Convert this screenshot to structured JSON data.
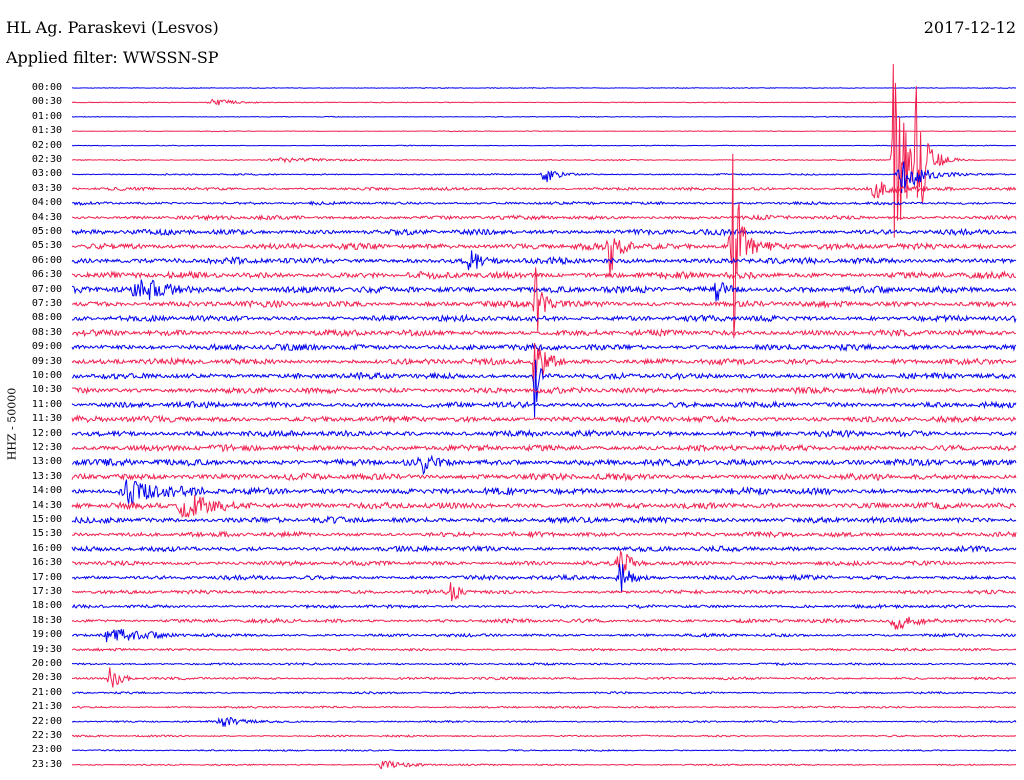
{
  "header": {
    "station": "HL Ag. Paraskevi (Lesvos)",
    "filter": "Applied filter: WWSSN-SP",
    "date": "2017-12-12",
    "channel": "HHZ - 50000"
  },
  "colors": {
    "blue": "#0000ee",
    "red": "#f0204f"
  },
  "chart_data": {
    "type": "line",
    "title": "HL Ag. Paraskevi (Lesvos)",
    "subtitle": "Applied filter: WWSSN-SP",
    "ylabel": "HHZ - 50000",
    "rows": [
      {
        "label": "00:00",
        "color": "blue",
        "noise": 0.3
      },
      {
        "label": "00:30",
        "color": "red",
        "noise": 0.3
      },
      {
        "label": "01:00",
        "color": "blue",
        "noise": 0.3
      },
      {
        "label": "01:30",
        "color": "red",
        "noise": 0.3
      },
      {
        "label": "02:00",
        "color": "blue",
        "noise": 0.3
      },
      {
        "label": "02:30",
        "color": "red",
        "noise": 0.45
      },
      {
        "label": "03:00",
        "color": "blue",
        "noise": 0.6
      },
      {
        "label": "03:30",
        "color": "red",
        "noise": 1.2
      },
      {
        "label": "04:00",
        "color": "blue",
        "noise": 1.2
      },
      {
        "label": "04:30",
        "color": "red",
        "noise": 1.6
      },
      {
        "label": "05:00",
        "color": "blue",
        "noise": 2.2
      },
      {
        "label": "05:30",
        "color": "red",
        "noise": 2.4
      },
      {
        "label": "06:00",
        "color": "blue",
        "noise": 2.5
      },
      {
        "label": "06:30",
        "color": "red",
        "noise": 2.6
      },
      {
        "label": "07:00",
        "color": "blue",
        "noise": 2.6
      },
      {
        "label": "07:30",
        "color": "red",
        "noise": 2.4
      },
      {
        "label": "08:00",
        "color": "blue",
        "noise": 2.4
      },
      {
        "label": "08:30",
        "color": "red",
        "noise": 2.4
      },
      {
        "label": "09:00",
        "color": "blue",
        "noise": 2.4
      },
      {
        "label": "09:30",
        "color": "red",
        "noise": 2.4
      },
      {
        "label": "10:00",
        "color": "blue",
        "noise": 2.3
      },
      {
        "label": "10:30",
        "color": "red",
        "noise": 2.3
      },
      {
        "label": "11:00",
        "color": "blue",
        "noise": 2.3
      },
      {
        "label": "11:30",
        "color": "red",
        "noise": 2.4
      },
      {
        "label": "12:00",
        "color": "blue",
        "noise": 2.4
      },
      {
        "label": "12:30",
        "color": "red",
        "noise": 2.4
      },
      {
        "label": "13:00",
        "color": "blue",
        "noise": 2.6
      },
      {
        "label": "13:30",
        "color": "red",
        "noise": 2.6
      },
      {
        "label": "14:00",
        "color": "blue",
        "noise": 2.6
      },
      {
        "label": "14:30",
        "color": "red",
        "noise": 2.4
      },
      {
        "label": "15:00",
        "color": "blue",
        "noise": 2.4
      },
      {
        "label": "15:30",
        "color": "red",
        "noise": 2.0
      },
      {
        "label": "16:00",
        "color": "blue",
        "noise": 2.0
      },
      {
        "label": "16:30",
        "color": "red",
        "noise": 1.8
      },
      {
        "label": "17:00",
        "color": "blue",
        "noise": 1.8
      },
      {
        "label": "17:30",
        "color": "red",
        "noise": 1.5
      },
      {
        "label": "18:00",
        "color": "blue",
        "noise": 1.3
      },
      {
        "label": "18:30",
        "color": "red",
        "noise": 1.5
      },
      {
        "label": "19:00",
        "color": "blue",
        "noise": 1.2
      },
      {
        "label": "19:30",
        "color": "red",
        "noise": 1.0
      },
      {
        "label": "20:00",
        "color": "blue",
        "noise": 0.9
      },
      {
        "label": "20:30",
        "color": "red",
        "noise": 1.0
      },
      {
        "label": "21:00",
        "color": "blue",
        "noise": 0.8
      },
      {
        "label": "21:30",
        "color": "red",
        "noise": 0.8
      },
      {
        "label": "22:00",
        "color": "blue",
        "noise": 0.7
      },
      {
        "label": "22:30",
        "color": "red",
        "noise": 0.7
      },
      {
        "label": "23:00",
        "color": "blue",
        "noise": 0.6
      },
      {
        "label": "23:30",
        "color": "red",
        "noise": 0.6
      }
    ],
    "events": [
      {
        "row": 1,
        "t": 0.15,
        "amp": 4,
        "width": 0.02
      },
      {
        "row": 5,
        "t": 0.22,
        "amp": 2,
        "width": 0.05
      },
      {
        "row": 6,
        "t": 0.5,
        "amp": 12,
        "width": 0.01
      },
      {
        "row": 7,
        "t": 0.85,
        "amp": 10,
        "width": 0.02
      },
      {
        "row": 5,
        "t": 0.87,
        "amp": 90,
        "width": 0.006
      },
      {
        "row": 5,
        "t": 0.875,
        "amp": 60,
        "width": 0.015
      },
      {
        "row": 5,
        "t": 0.895,
        "amp": 70,
        "width": 0.008
      },
      {
        "row": 6,
        "t": 0.88,
        "amp": 20,
        "width": 0.02
      },
      {
        "row": 11,
        "t": 0.57,
        "amp": 26,
        "width": 0.01
      },
      {
        "row": 11,
        "t": 0.7,
        "amp": 165,
        "width": 0.004
      },
      {
        "row": 11,
        "t": 0.7,
        "amp": 20,
        "width": 0.02
      },
      {
        "row": 12,
        "t": 0.42,
        "amp": 30,
        "width": 0.005
      },
      {
        "row": 14,
        "t": 0.07,
        "amp": 12,
        "width": 0.03
      },
      {
        "row": 14,
        "t": 0.68,
        "amp": 14,
        "width": 0.01
      },
      {
        "row": 15,
        "t": 0.49,
        "amp": 50,
        "width": 0.006
      },
      {
        "row": 20,
        "t": 0.49,
        "amp": 45,
        "width": 0.004
      },
      {
        "row": 19,
        "t": 0.49,
        "amp": 30,
        "width": 0.01
      },
      {
        "row": 26,
        "t": 0.37,
        "amp": 10,
        "width": 0.01
      },
      {
        "row": 28,
        "t": 0.06,
        "amp": 12,
        "width": 0.03
      },
      {
        "row": 29,
        "t": 0.12,
        "amp": 12,
        "width": 0.03
      },
      {
        "row": 33,
        "t": 0.58,
        "amp": 16,
        "width": 0.01
      },
      {
        "row": 34,
        "t": 0.58,
        "amp": 18,
        "width": 0.01
      },
      {
        "row": 35,
        "t": 0.4,
        "amp": 10,
        "width": 0.01
      },
      {
        "row": 37,
        "t": 0.87,
        "amp": 10,
        "width": 0.02
      },
      {
        "row": 38,
        "t": 0.04,
        "amp": 8,
        "width": 0.03
      },
      {
        "row": 41,
        "t": 0.04,
        "amp": 12,
        "width": 0.01
      },
      {
        "row": 44,
        "t": 0.16,
        "amp": 5,
        "width": 0.02
      },
      {
        "row": 47,
        "t": 0.33,
        "amp": 5,
        "width": 0.02
      }
    ]
  }
}
